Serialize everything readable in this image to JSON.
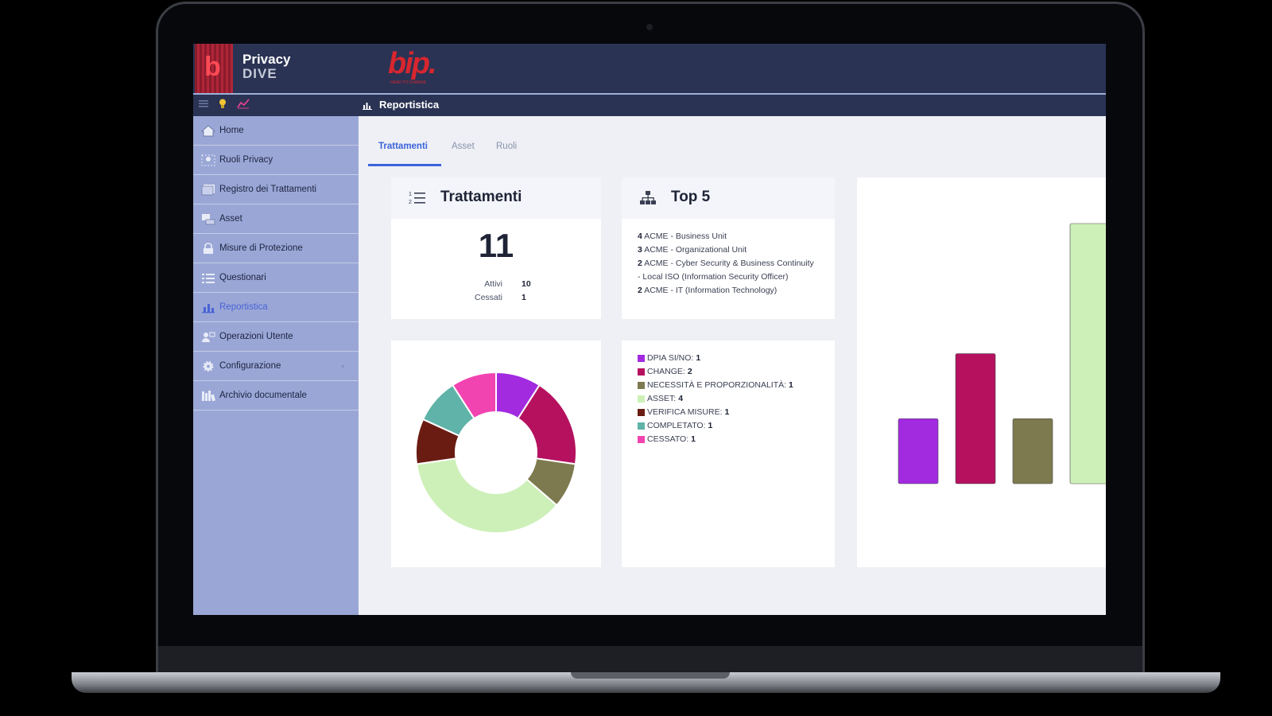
{
  "app": {
    "brand_line1": "Privacy",
    "brand_line2": "DIVE",
    "partner_logo": "bip.",
    "partner_tagline": "HEAD TO CHANGE"
  },
  "toolbar": {
    "icons": [
      "menu-icon",
      "lightbulb-icon",
      "trend-icon"
    ],
    "page_title": "Reportistica"
  },
  "sidebar": {
    "items": [
      {
        "label": "Home",
        "icon": "home-icon"
      },
      {
        "label": "Ruoli Privacy",
        "icon": "roles-icon"
      },
      {
        "label": "Registro dei Trattamenti",
        "icon": "register-icon"
      },
      {
        "label": "Asset",
        "icon": "asset-icon"
      },
      {
        "label": "Misure di Protezione",
        "icon": "lock-icon"
      },
      {
        "label": "Questionari",
        "icon": "list-icon"
      },
      {
        "label": "Reportistica",
        "icon": "chart-icon",
        "active": true
      },
      {
        "label": "Operazioni Utente",
        "icon": "user-icon"
      },
      {
        "label": "Configurazione",
        "icon": "gear-icon",
        "chevron": "‹"
      },
      {
        "label": "Archivio documentale",
        "icon": "archive-icon"
      }
    ]
  },
  "tabs": [
    {
      "label": "Trattamenti",
      "active": true
    },
    {
      "label": "Asset"
    },
    {
      "label": "Ruoli"
    }
  ],
  "trattamenti_card": {
    "title": "Trattamenti",
    "total": "11",
    "attivi_label": "Attivi",
    "attivi_value": "10",
    "cessati_label": "Cessati",
    "cessati_value": "1"
  },
  "top5_card": {
    "title": "Top 5",
    "entries": [
      {
        "count": "4",
        "text": "ACME - Business Unit"
      },
      {
        "count": "3",
        "text": "ACME - Organizational Unit"
      },
      {
        "count": "2",
        "text": "ACME - Cyber Security & Business Continuity - Local ISO (Information Security Officer)"
      },
      {
        "count": "2",
        "text": "ACME - IT (Information Technology)"
      }
    ]
  },
  "chart_data": [
    {
      "type": "pie",
      "categories": [
        "DPIA SI/NO",
        "CHANGE",
        "NECESSITÀ E PROPORZIONALITÀ",
        "ASSET",
        "VERIFICA MISURE",
        "COMPLETATO",
        "CESSATO"
      ],
      "values": [
        1,
        2,
        1,
        4,
        1,
        1,
        1
      ],
      "colors": [
        "#a22be0",
        "#b5115f",
        "#7d7a4f",
        "#cdf0b8",
        "#6a1c12",
        "#5fb3a8",
        "#f244b0"
      ],
      "legend_suffix": ": "
    },
    {
      "type": "bar",
      "categories": [
        "DPIA SI/NO",
        "CHANGE",
        "NECESSITÀ E PROPORZIONALITÀ",
        "ASSET"
      ],
      "values": [
        1,
        2,
        1,
        4
      ],
      "colors": [
        "#a22be0",
        "#b5115f",
        "#7d7a4f",
        "#cdf0b8"
      ],
      "ylim": [
        0,
        4
      ]
    }
  ]
}
